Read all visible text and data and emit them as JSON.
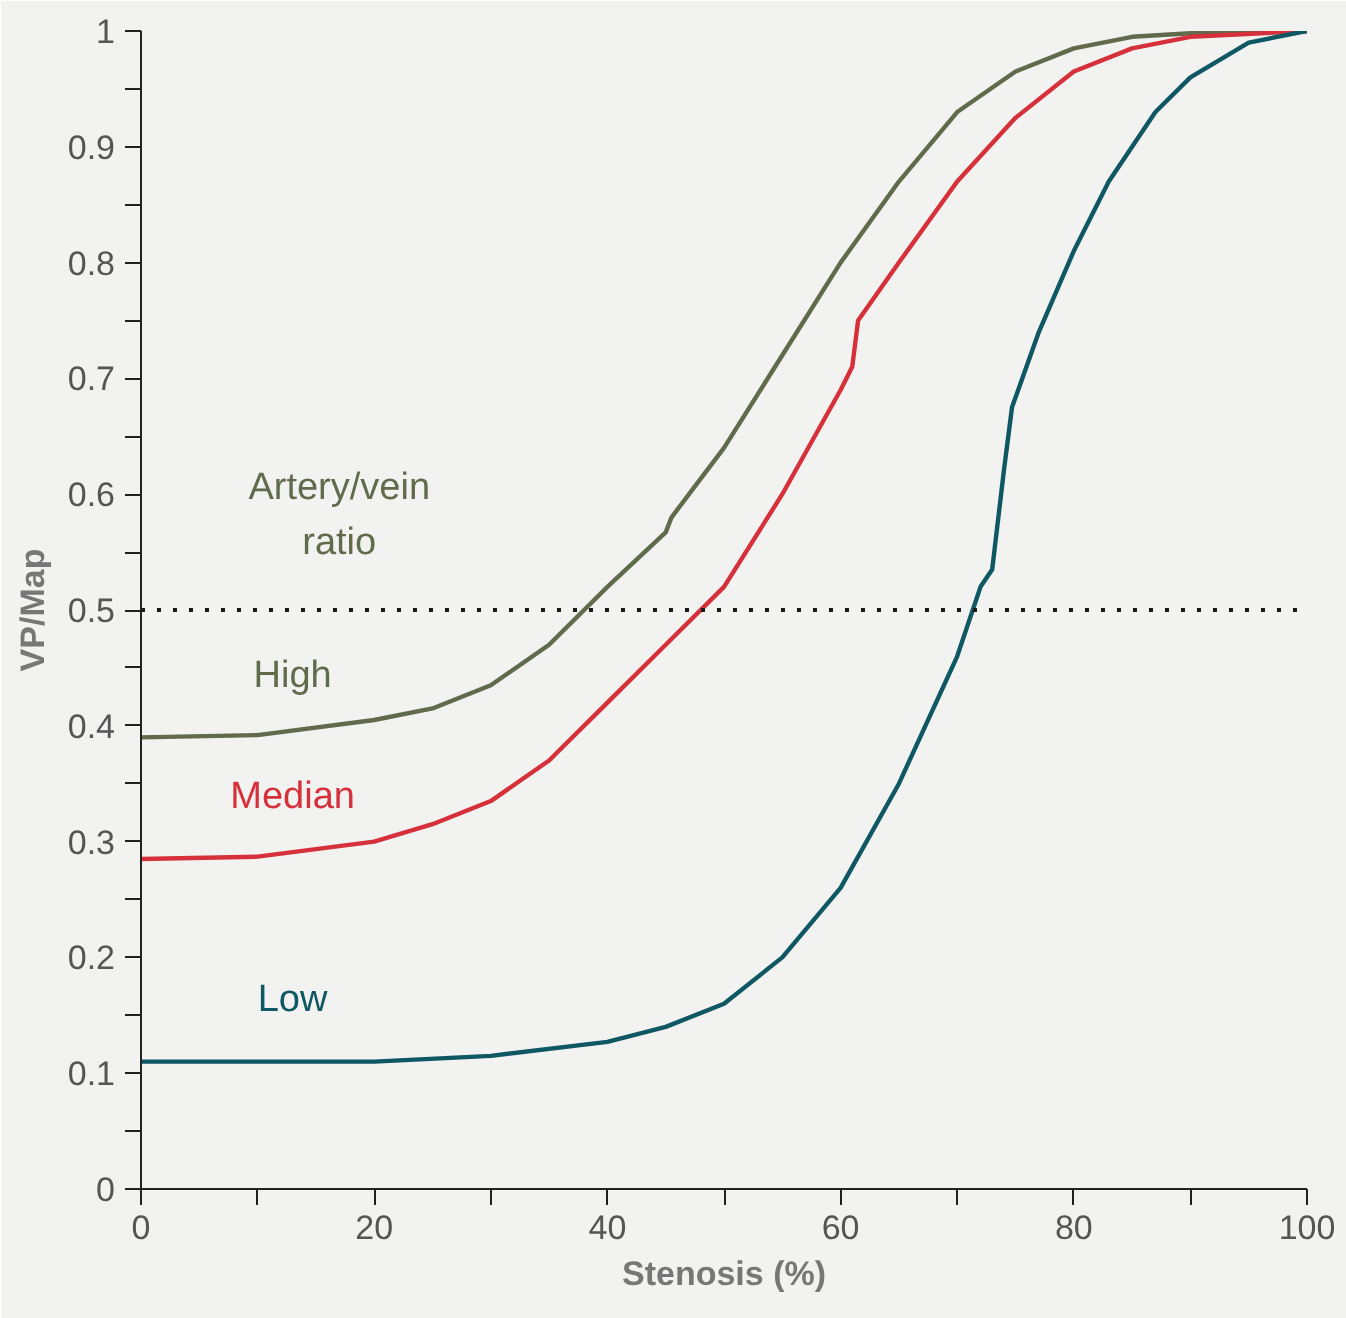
{
  "chart_data": {
    "type": "line",
    "xlabel": "Stenosis (%)",
    "ylabel": "VP/Map",
    "legend_title": "Artery/vein\nratio",
    "xlim": [
      0,
      100
    ],
    "ylim": [
      0,
      1
    ],
    "xticks": [
      0,
      {
        "value": 10,
        "label": null
      },
      20,
      {
        "value": 30,
        "label": null
      },
      40,
      {
        "value": 50,
        "label": null
      },
      60,
      {
        "value": 70,
        "label": null
      },
      80,
      {
        "value": 90,
        "label": null
      },
      100
    ],
    "yticks": [
      0,
      {
        "value": 0.05,
        "label": null
      },
      0.1,
      {
        "value": 0.15,
        "label": null
      },
      0.2,
      {
        "value": 0.25,
        "label": null
      },
      0.3,
      {
        "value": 0.35,
        "label": null
      },
      0.4,
      {
        "value": 0.45,
        "label": null
      },
      0.5,
      {
        "value": 0.55,
        "label": null
      },
      0.6,
      {
        "value": 0.65,
        "label": null
      },
      0.7,
      {
        "value": 0.75,
        "label": null
      },
      0.8,
      {
        "value": 0.85,
        "label": null
      },
      0.9,
      {
        "value": 0.95,
        "label": null
      },
      1
    ],
    "grid": false,
    "marker": "none",
    "line_style": "solid",
    "ref_lines": [
      {
        "axis": "y",
        "value": 0.5,
        "color": "#1a1a1a",
        "line_style": "dotted"
      }
    ],
    "series": [
      {
        "name": "High",
        "color": "#5f6b4a",
        "x": [
          0,
          10,
          20,
          25,
          30,
          35,
          38,
          40,
          45,
          45.5,
          47,
          50,
          55,
          60,
          65,
          70,
          75,
          80,
          85,
          90,
          100
        ],
        "values": [
          0.39,
          0.392,
          0.405,
          0.415,
          0.435,
          0.47,
          0.5,
          0.52,
          0.567,
          0.58,
          0.6,
          0.64,
          0.72,
          0.8,
          0.87,
          0.93,
          0.965,
          0.985,
          0.995,
          0.998,
          1
        ]
      },
      {
        "name": "Median",
        "color": "#d6303a",
        "x": [
          0,
          10,
          20,
          25,
          30,
          35,
          40,
          45,
          50,
          55,
          60,
          61,
          61.5,
          65,
          70,
          75,
          80,
          85,
          90,
          100
        ],
        "values": [
          0.285,
          0.287,
          0.3,
          0.315,
          0.335,
          0.37,
          0.42,
          0.47,
          0.52,
          0.6,
          0.69,
          0.71,
          0.75,
          0.8,
          0.87,
          0.925,
          0.965,
          0.985,
          0.995,
          1
        ]
      },
      {
        "name": "Low",
        "color": "#0e5763",
        "x": [
          0,
          20,
          30,
          40,
          45,
          50,
          55,
          60,
          65,
          70,
          72,
          73,
          74,
          74.7,
          77,
          80,
          83,
          87,
          90,
          95,
          100
        ],
        "values": [
          0.11,
          0.11,
          0.115,
          0.127,
          0.14,
          0.16,
          0.2,
          0.26,
          0.35,
          0.46,
          0.52,
          0.535,
          0.62,
          0.675,
          0.74,
          0.81,
          0.87,
          0.93,
          0.96,
          0.99,
          1
        ]
      }
    ]
  }
}
